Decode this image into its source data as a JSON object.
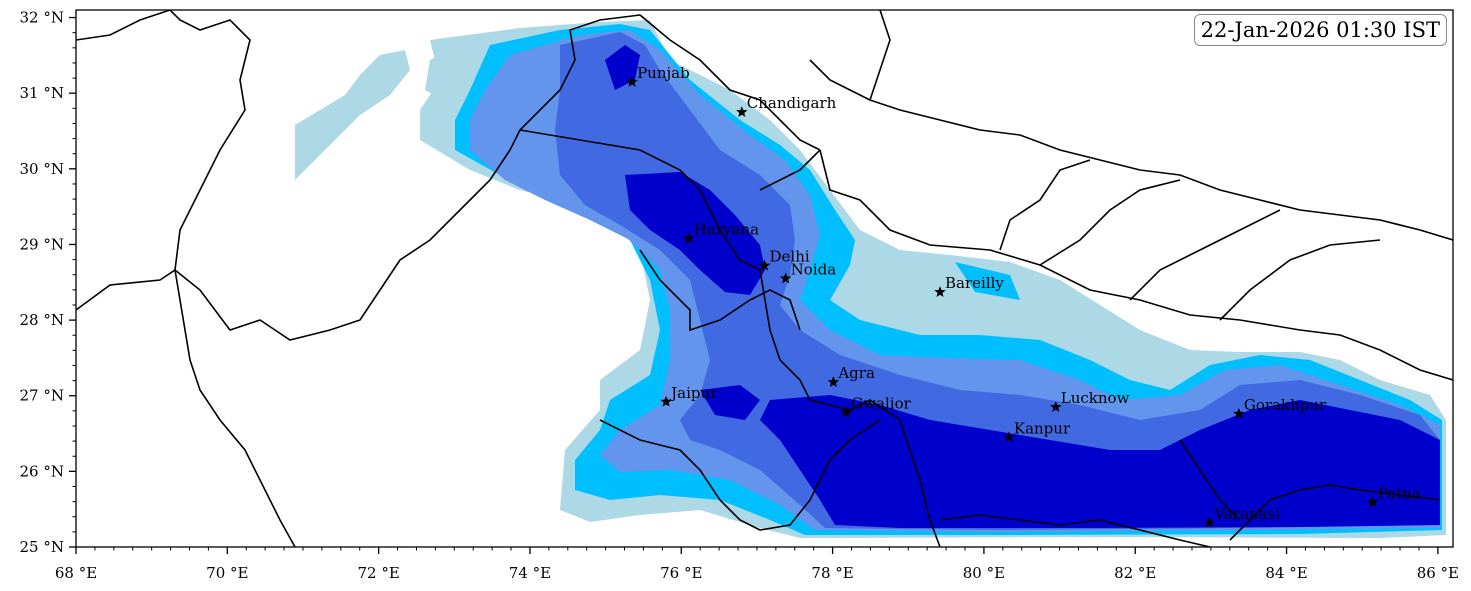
{
  "timestamp": "22-Jan-2026 01:30 IST",
  "map": {
    "lon_range": [
      68,
      86.2
    ],
    "lat_range": [
      25,
      32.1
    ],
    "x_ticks": [
      {
        "value": 68,
        "label": "68 °E"
      },
      {
        "value": 70,
        "label": "70 °E"
      },
      {
        "value": 72,
        "label": "72 °E"
      },
      {
        "value": 74,
        "label": "74 °E"
      },
      {
        "value": 76,
        "label": "76 °E"
      },
      {
        "value": 78,
        "label": "78 °E"
      },
      {
        "value": 80,
        "label": "80 °E"
      },
      {
        "value": 82,
        "label": "82 °E"
      },
      {
        "value": 84,
        "label": "84 °E"
      },
      {
        "value": 86,
        "label": "86 °E"
      }
    ],
    "y_ticks": [
      {
        "value": 25,
        "label": "25 °N"
      },
      {
        "value": 26,
        "label": "26 °N"
      },
      {
        "value": 27,
        "label": "27 °N"
      },
      {
        "value": 28,
        "label": "28 °N"
      },
      {
        "value": 29,
        "label": "29 °N"
      },
      {
        "value": 30,
        "label": "30 °N"
      },
      {
        "value": 31,
        "label": "31 °N"
      },
      {
        "value": 32,
        "label": "32 °N"
      }
    ],
    "fill_colors": [
      "#add8e6",
      "#00bfff",
      "#6495ed",
      "#4169e1",
      "#0000cd"
    ],
    "cities": [
      {
        "name": "Punjab",
        "lon": 75.35,
        "lat": 31.15
      },
      {
        "name": "Chandigarh",
        "lon": 76.8,
        "lat": 30.75
      },
      {
        "name": "Haryana",
        "lon": 76.1,
        "lat": 29.08
      },
      {
        "name": "Delhi",
        "lon": 77.1,
        "lat": 28.72
      },
      {
        "name": "Noida",
        "lon": 77.38,
        "lat": 28.55
      },
      {
        "name": "Bareilly",
        "lon": 79.42,
        "lat": 28.37
      },
      {
        "name": "Agra",
        "lon": 78.01,
        "lat": 27.18
      },
      {
        "name": "Jaipur",
        "lon": 75.8,
        "lat": 26.92
      },
      {
        "name": "Gwalior",
        "lon": 78.18,
        "lat": 26.78
      },
      {
        "name": "Lucknow",
        "lon": 80.95,
        "lat": 26.85
      },
      {
        "name": "Gorakhpur",
        "lon": 83.37,
        "lat": 26.76
      },
      {
        "name": "Kanpur",
        "lon": 80.33,
        "lat": 26.45
      },
      {
        "name": "Patna",
        "lon": 85.14,
        "lat": 25.59
      },
      {
        "name": "Varanasi",
        "lon": 82.98,
        "lat": 25.32
      }
    ]
  }
}
